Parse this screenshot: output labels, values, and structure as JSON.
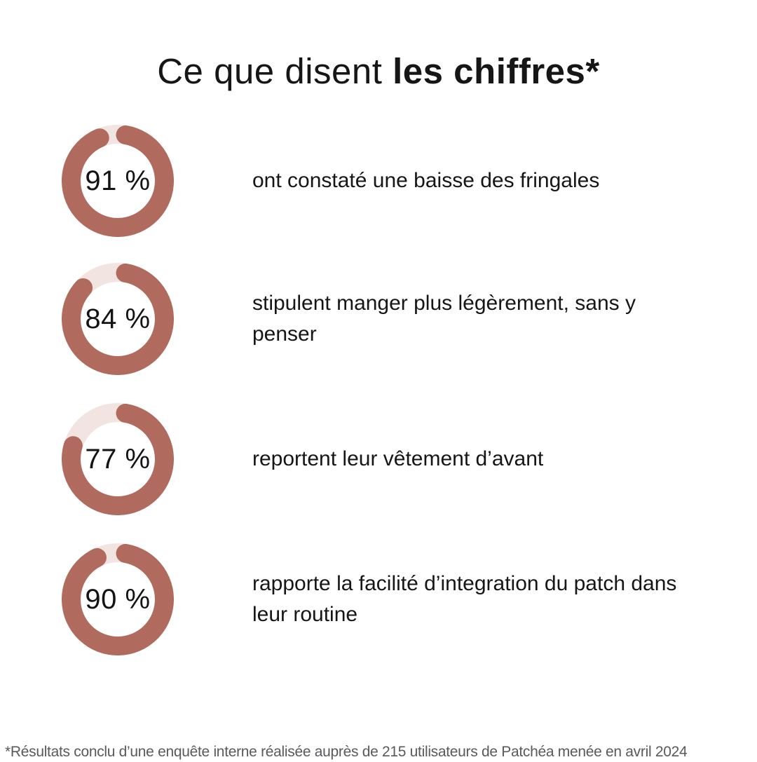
{
  "title": {
    "regular": "Ce que disent ",
    "bold": "les chiffres*"
  },
  "rows": [
    {
      "percent": 91,
      "label": "91 %",
      "lines": [
        "ont constaté une baisse des fringales"
      ]
    },
    {
      "percent": 84,
      "label": "84 %",
      "lines": [
        "stipulent manger plus légèrement, sans y",
        "penser"
      ]
    },
    {
      "percent": 77,
      "label": "77 %",
      "lines": [
        "reportent leur vêtement d’avant"
      ]
    },
    {
      "percent": 90,
      "label": "90 %",
      "lines": [
        "rapporte la facilité d’integration du patch dans",
        "leur routine"
      ]
    }
  ],
  "footnote": "*Résultats conclu d’une enquête interne réalisée auprès de 215 utilisateurs de Patchéa menée en avril 2024",
  "colors": {
    "ring": "#b06a5e",
    "track": "#f1e4e1",
    "text": "#161616",
    "footnote": "#595a5e",
    "background": "#ffffff"
  },
  "chart_data": {
    "type": "pie",
    "subtype": "donut-set",
    "title": "Ce que disent les chiffres*",
    "unit": "%",
    "series": [
      {
        "name": "ont constaté une baisse des fringales",
        "value": 91
      },
      {
        "name": "stipulent manger plus légèrement, sans y penser",
        "value": 84
      },
      {
        "name": "reportent leur vêtement d’avant",
        "value": 77
      },
      {
        "name": "rapporte la facilité d’integration du patch dans leur routine",
        "value": 90
      }
    ],
    "layout": {
      "arc_start_deg_from_top": 10,
      "direction": "clockwise",
      "rounded_caps": true
    },
    "footnote": "*Résultats conclu d’une enquête interne réalisée auprès de 215 utilisateurs de Patchéa menée en avril 2024"
  }
}
